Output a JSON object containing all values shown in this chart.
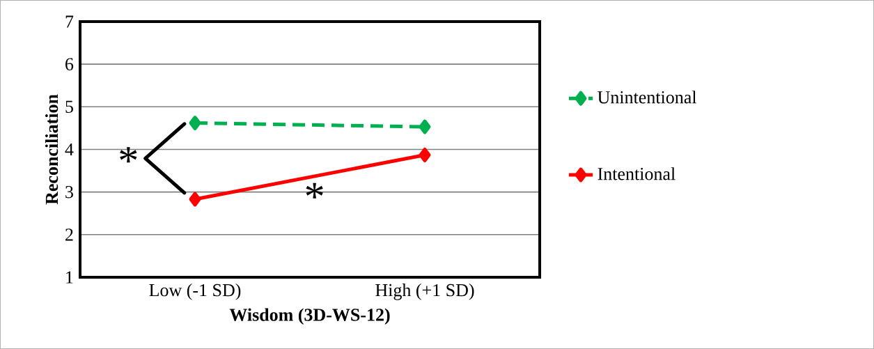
{
  "chart_data": {
    "type": "line",
    "xlabel": "Wisdom (3D-WS-12)",
    "ylabel": "Reconciliation",
    "categories": [
      "Low (-1 SD)",
      "High (+1 SD)"
    ],
    "series": [
      {
        "name": "Unintentional",
        "color": "#00b050",
        "values": [
          4.62,
          4.53
        ],
        "line_style": "dashed"
      },
      {
        "name": "Intentional",
        "color": "#ff0000",
        "values": [
          2.83,
          3.87
        ],
        "line_style": "solid"
      }
    ],
    "ylim": [
      1,
      7
    ],
    "yticks": [
      1,
      2,
      3,
      4,
      5,
      6,
      7
    ],
    "grid": "y",
    "legend": "right",
    "marker": "diamond",
    "annotations": [
      "*",
      "*"
    ]
  }
}
